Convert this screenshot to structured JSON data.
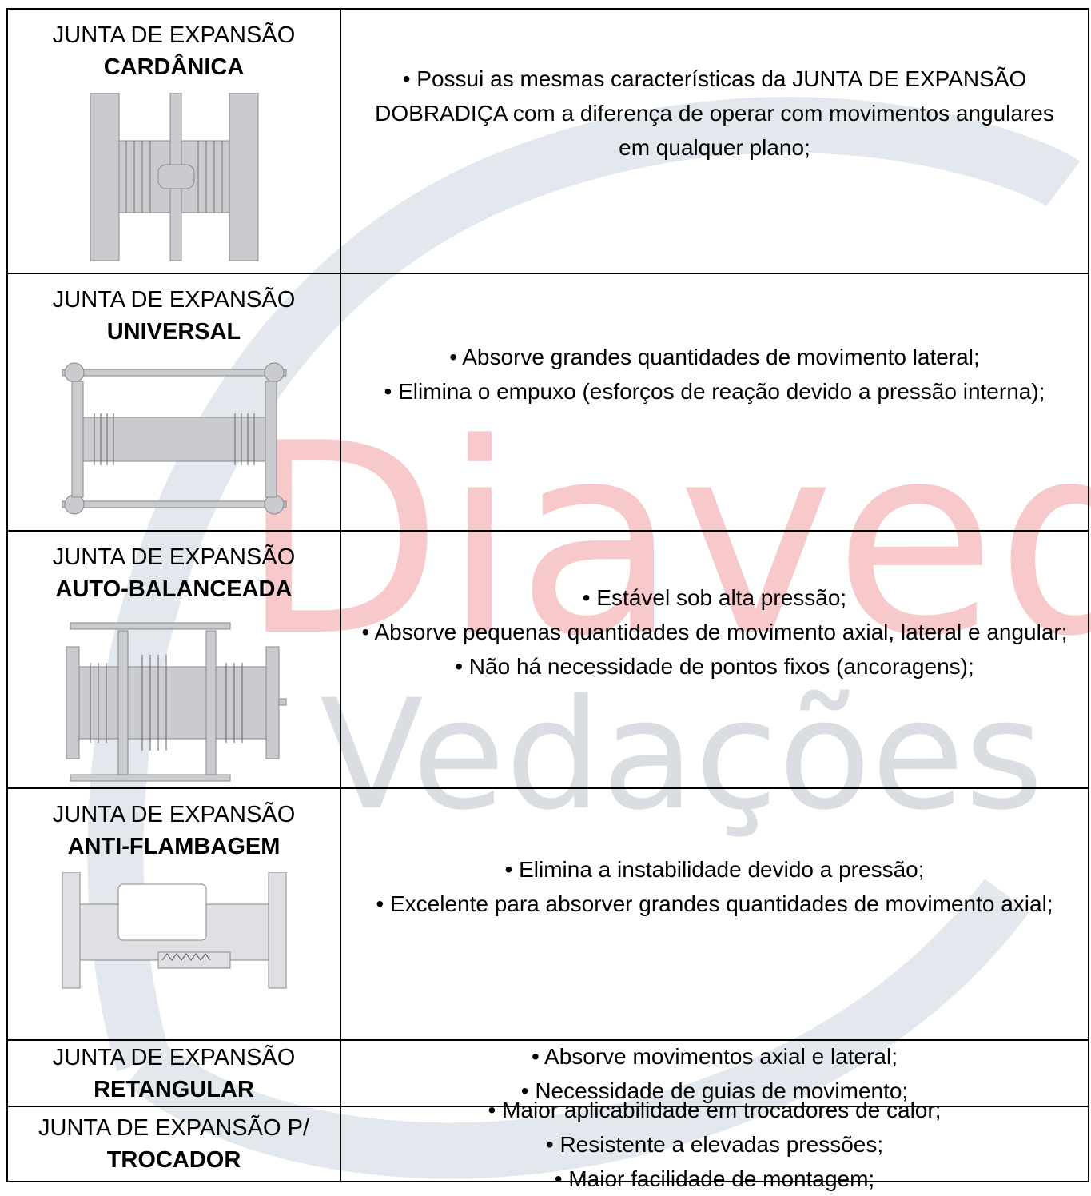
{
  "watermark": {
    "brand": "Diaved",
    "tagline": "Vedações"
  },
  "table": {
    "rows": [
      {
        "title": "JUNTA DE EXPANSÃO",
        "name": "CARDÂNICA",
        "bullets": [
          "• Possui as mesmas características da JUNTA DE EXPANSÃO DOBRADIÇA com a diferença de operar com movimentos angulares em qualquer plano;"
        ]
      },
      {
        "title": "JUNTA DE EXPANSÃO",
        "name": "UNIVERSAL",
        "bullets": [
          "• Absorve grandes quantidades de movimento lateral;",
          "• Elimina o empuxo (esforços de reação devido a pressão interna);"
        ]
      },
      {
        "title": "JUNTA DE EXPANSÃO",
        "name": "AUTO-BALANCEADA",
        "bullets": [
          "• Estável sob alta pressão;",
          "• Absorve pequenas quantidades de movimento axial, lateral e angular;",
          "• Não há necessidade de pontos fixos (ancoragens);"
        ]
      },
      {
        "title": "JUNTA DE EXPANSÃO",
        "name": "ANTI-FLAMBAGEM",
        "bullets": [
          "• Elimina a instabilidade devido a pressão;",
          "• Excelente para absorver grandes quantidades de movimento axial;"
        ]
      },
      {
        "title": "JUNTA DE EXPANSÃO",
        "name": "RETANGULAR",
        "bullets": [
          "• Absorve movimentos axial e lateral;",
          "• Necessidade de guias de movimento;"
        ]
      },
      {
        "title": "JUNTA DE EXPANSÃO P/",
        "name": "TROCADOR",
        "bullets": [
          "• Maior aplicabilidade em trocadores de calor;",
          "• Resistente a elevadas pressões;",
          "• Maior facilidade de montagem;"
        ]
      }
    ]
  }
}
